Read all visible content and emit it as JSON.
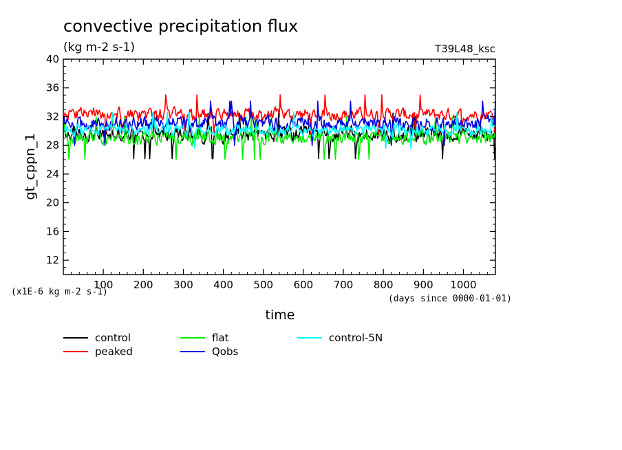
{
  "chart_data": {
    "type": "line",
    "title": "convective precipitation flux",
    "units_label": "(kg m-2 s-1)",
    "run_label": "T39L48_ksc",
    "ylabel": "gt_cppn_1",
    "xlabel": "time",
    "y_scale_note": "(x1E-6 kg m-2 s-1)",
    "x_units_note": "(days since 0000-01-01)",
    "xlim": [
      0,
      1080
    ],
    "ylim": [
      10,
      40
    ],
    "x_ticks": [
      100,
      200,
      300,
      400,
      500,
      600,
      700,
      800,
      900,
      1000
    ],
    "y_ticks": [
      12,
      16,
      20,
      24,
      28,
      32,
      36,
      40
    ],
    "sampling_interval_days": 2,
    "series": [
      {
        "name": "control",
        "color": "#000000",
        "mean": 29.5,
        "amplitude": 1.6,
        "min": 25.8,
        "max": 32.5
      },
      {
        "name": "peaked",
        "color": "#ff0000",
        "mean": 32.3,
        "amplitude": 1.3,
        "min": 29.5,
        "max": 35.1
      },
      {
        "name": "flat",
        "color": "#00ee00",
        "mean": 29.0,
        "amplitude": 1.4,
        "min": 25.2,
        "max": 32.0
      },
      {
        "name": "Qobs",
        "color": "#0000dd",
        "mean": 31.0,
        "amplitude": 1.5,
        "min": 28.0,
        "max": 35.0
      },
      {
        "name": "control-5N",
        "color": "#00ffff",
        "mean": 30.1,
        "amplitude": 1.2,
        "min": 26.3,
        "max": 33.0
      }
    ]
  }
}
